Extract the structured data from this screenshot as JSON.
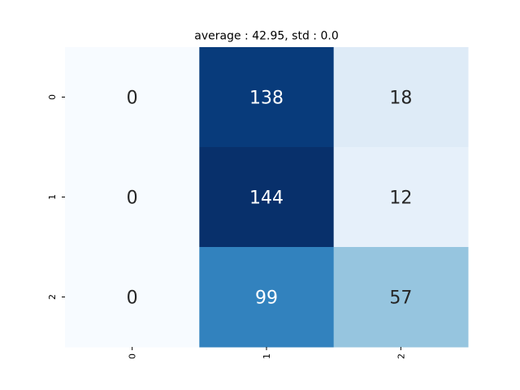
{
  "chart_data": {
    "type": "heatmap",
    "title": "average : 42.95, std : 0.0",
    "xlabel": "",
    "ylabel": "",
    "x_categories": [
      "0",
      "1",
      "2"
    ],
    "y_categories": [
      "0",
      "1",
      "2"
    ],
    "values": [
      [
        0,
        138,
        18
      ],
      [
        0,
        144,
        12
      ],
      [
        0,
        99,
        57
      ]
    ],
    "colormap": "Blues",
    "vmin": 0,
    "vmax": 144,
    "colorbar": false
  }
}
